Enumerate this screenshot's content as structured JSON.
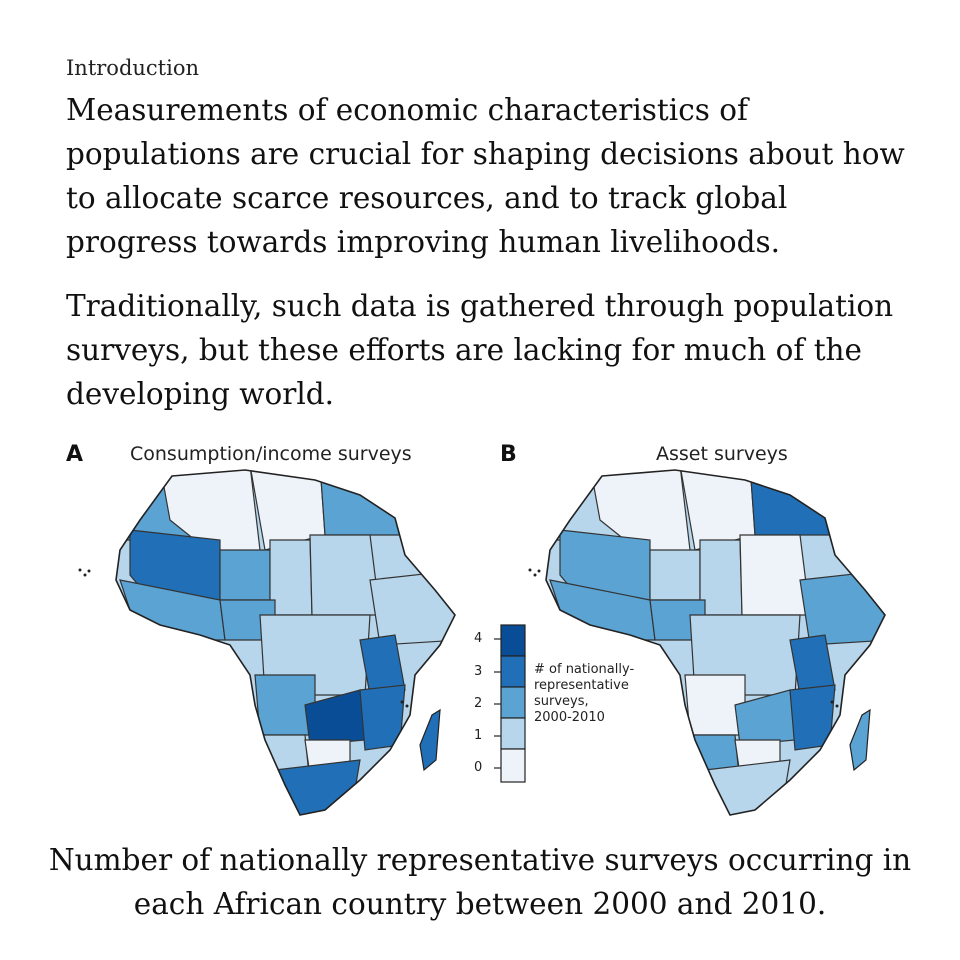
{
  "section_label": "Introduction",
  "paragraphs": [
    "Measurements of economic characteristics of populations are crucial for shaping decisions about how to allocate scarce resources, and to track global progress towards improving human livelihoods.",
    "Traditionally, such data is gathered through population surveys, but these efforts are lacking for much of the developing world."
  ],
  "figure": {
    "panels": [
      {
        "letter": "A",
        "title": "Consumption/income surveys"
      },
      {
        "letter": "B",
        "title": "Asset surveys"
      }
    ],
    "legend": {
      "title": "# of nationally-representative surveys, 2000-2010",
      "title_lines": [
        "# of nationally-",
        "representative",
        "surveys,",
        "2000-2010"
      ],
      "ticks": [
        "4",
        "3",
        "2",
        "1",
        "0"
      ],
      "colors": [
        "#0a4d97",
        "#2170b7",
        "#5aa3d2",
        "#b7d6eb",
        "#eef3f9"
      ]
    }
  },
  "caption": "Number of nationally representative surveys occurring in each African country between 2000 and 2010."
}
